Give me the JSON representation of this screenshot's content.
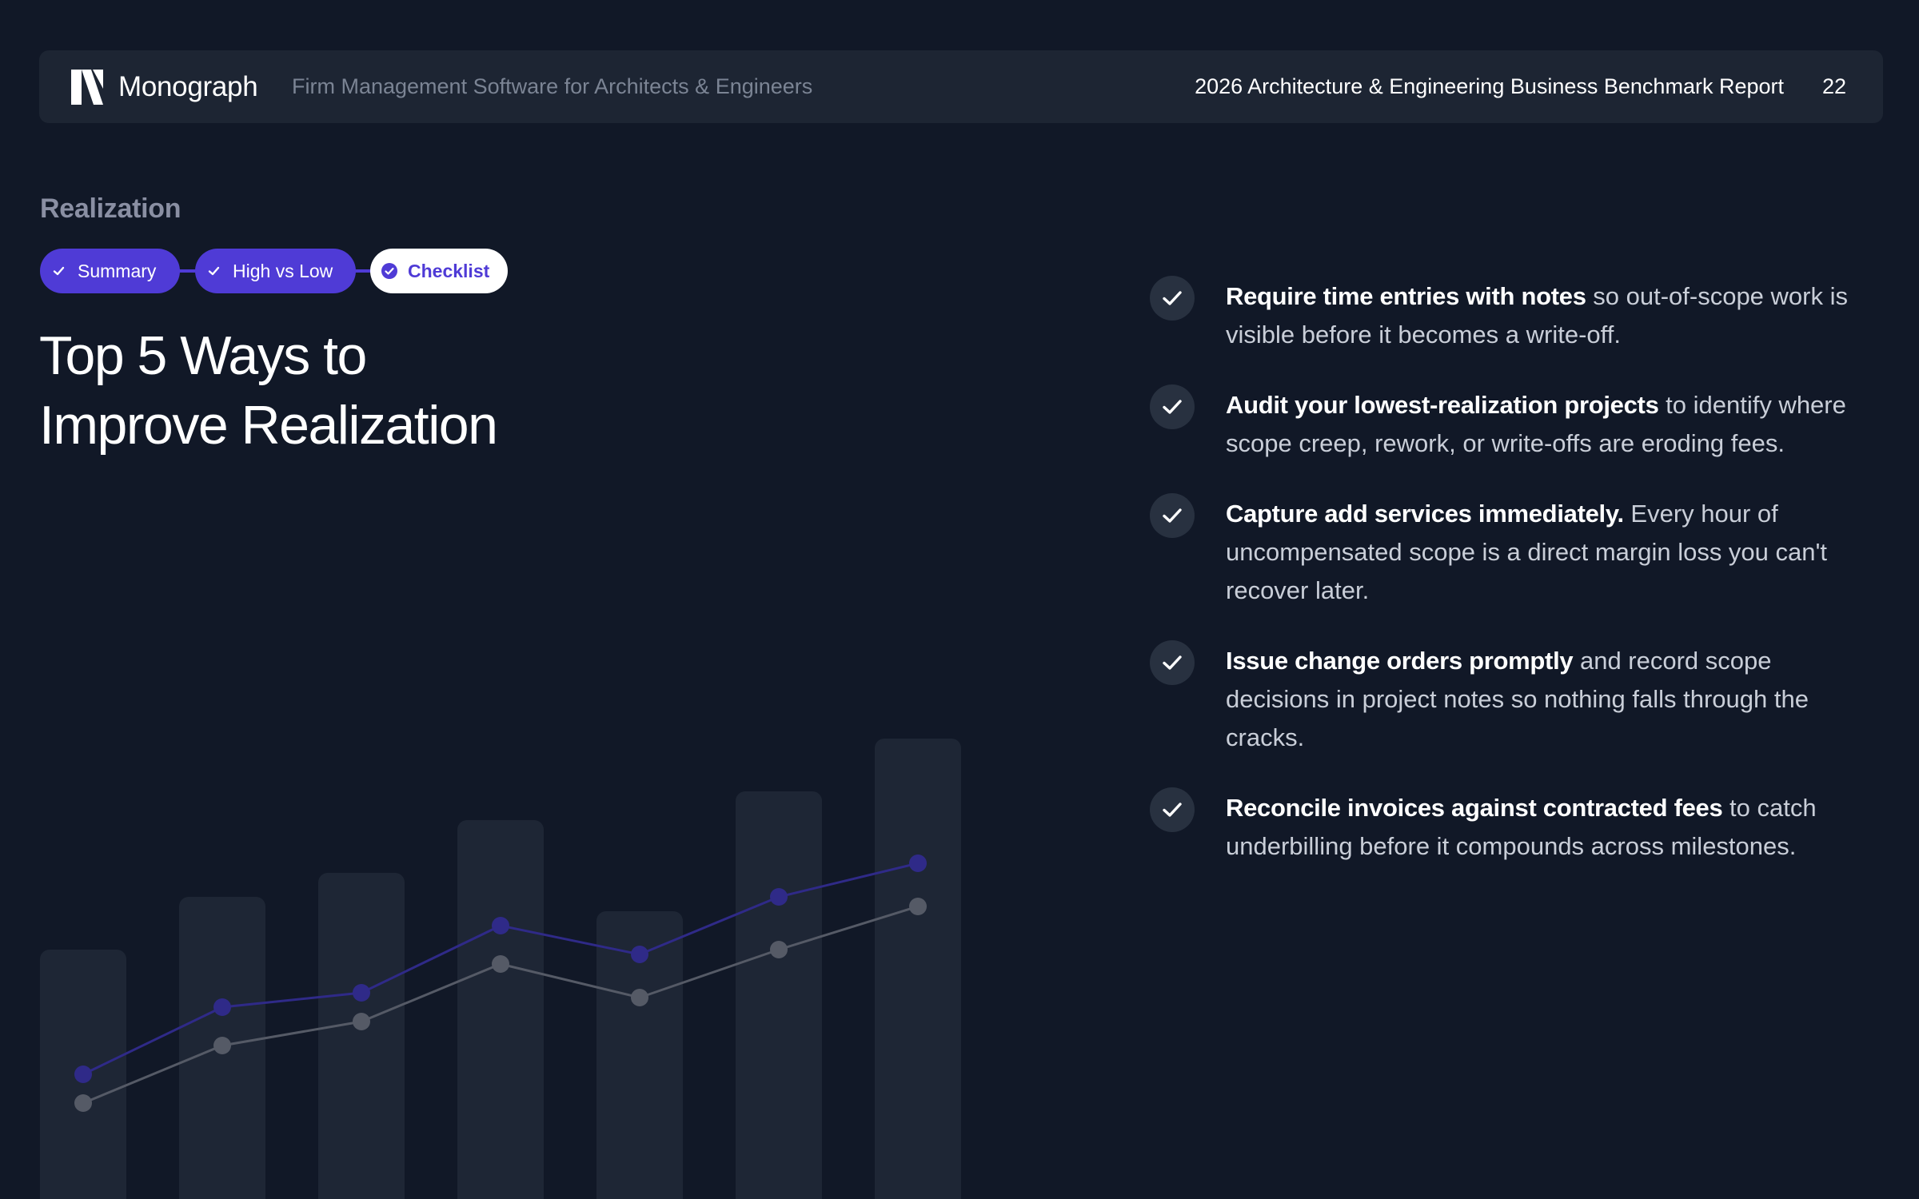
{
  "header": {
    "brand": "Monograph",
    "tagline": "Firm Management Software for Architects & Engineers",
    "report_title": "2026 Architecture & Engineering Business Benchmark Report",
    "page_number": "22",
    "logo_icon": "monograph-logo-icon"
  },
  "section": {
    "label": "Realization"
  },
  "tabs": [
    {
      "label": "Summary",
      "state": "completed",
      "icon": "check-icon"
    },
    {
      "label": "High vs Low",
      "state": "completed",
      "icon": "check-icon"
    },
    {
      "label": "Checklist",
      "state": "active",
      "icon": "check-circle-icon"
    }
  ],
  "title": {
    "line1": "Top 5 Ways to",
    "line2": "Improve Realization"
  },
  "checklist": [
    {
      "bold": "Require time entries with notes",
      "rest": " so out-of-scope work is visible before it becomes a write-off."
    },
    {
      "bold": "Audit your lowest-realization projects",
      "rest": " to identify where scope creep, rework, or write-offs are eroding fees."
    },
    {
      "bold": "Capture add services immediately.",
      "rest": " Every hour of uncompensated scope is a direct margin loss you can't recover later."
    },
    {
      "bold": "Issue change orders promptly",
      "rest": " and record scope decisions in project notes so nothing falls through the cracks."
    },
    {
      "bold": "Reconcile invoices against contracted fees",
      "rest": " to catch underbilling before it compounds across milestones."
    }
  ],
  "colors": {
    "background": "#111827",
    "header_bg": "#1d2533",
    "accent": "#4f3bd6",
    "muted_text": "#7b8494",
    "check_circle_bg": "#283140",
    "bar_fill": "#1e2635",
    "line_primary": "#2f2a88",
    "line_secondary": "#555a66"
  },
  "chart_data": {
    "type": "bar",
    "decorative": true,
    "categories": [
      "",
      "",
      "",
      "",
      "",
      "",
      ""
    ],
    "values": [
      52,
      63,
      68,
      79,
      60,
      85,
      96
    ],
    "ylim": [
      0,
      100
    ],
    "grid": false,
    "series": [
      {
        "type": "line",
        "values": [
          26,
          40,
          43,
          57,
          51,
          63,
          70
        ]
      },
      {
        "type": "line",
        "values": [
          20,
          32,
          37,
          49,
          42,
          52,
          61
        ]
      }
    ]
  }
}
